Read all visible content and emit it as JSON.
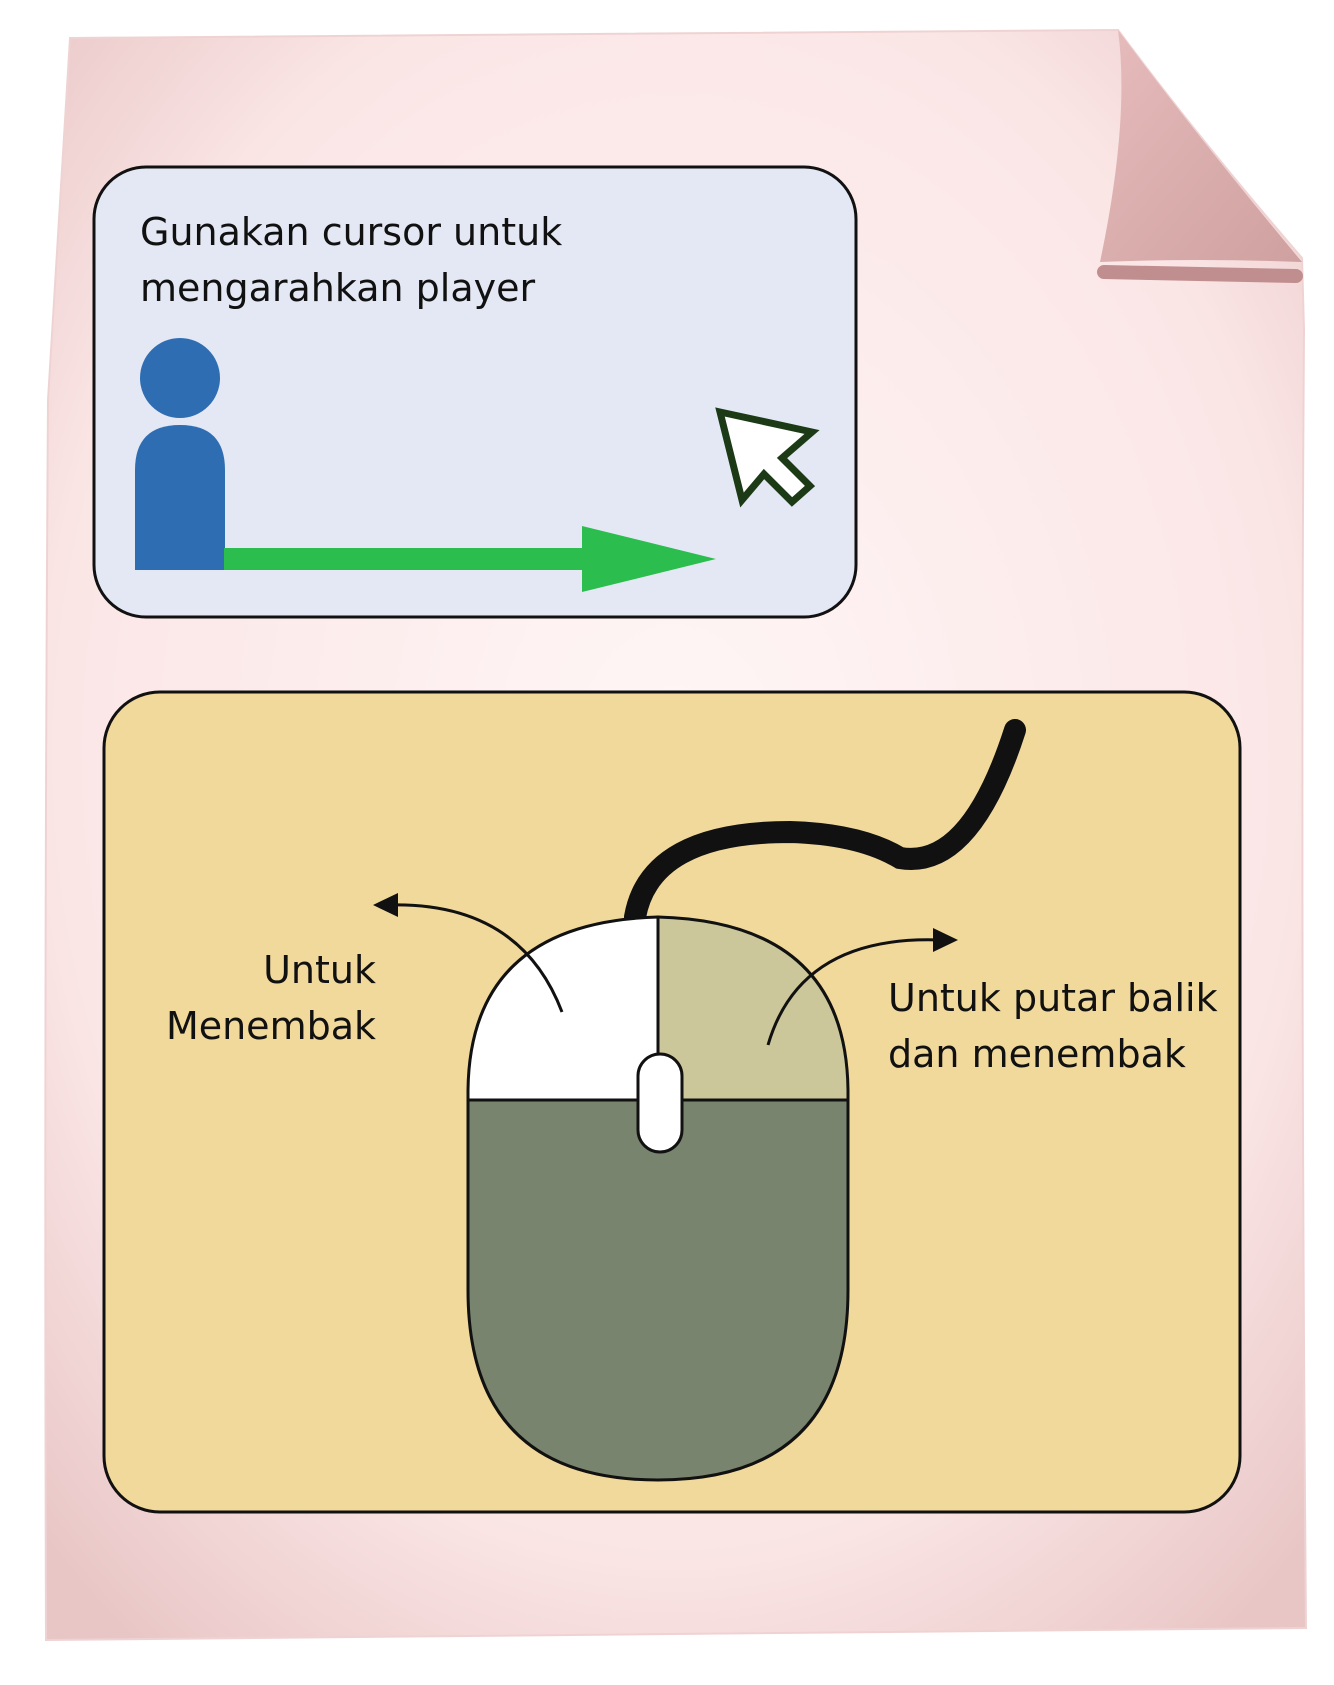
{
  "colors": {
    "paper": "#fdeeee",
    "paper_shadow": "#e8c3c3",
    "cursor_panel_bg": "#e4e8f4",
    "mouse_panel_bg": "#f1d99c",
    "player": "#2f6db3",
    "arrow_green": "#2bbd4e",
    "mouse_left_button": "#ffffff",
    "mouse_right_button": "#cbc79a",
    "mouse_body": "#78846d",
    "outline": "#111111"
  },
  "icons": {
    "player": "person-icon",
    "cursor": "cursor-arrow-icon",
    "mouse": "mouse-icon"
  },
  "cursor_panel": {
    "line1": "Gunakan cursor untuk",
    "line2": "mengarahkan player"
  },
  "mouse_panel": {
    "left_label_line1": "Untuk",
    "left_label_line2": "Menembak",
    "right_label_line1": "Untuk putar balik",
    "right_label_line2": "dan menembak"
  }
}
